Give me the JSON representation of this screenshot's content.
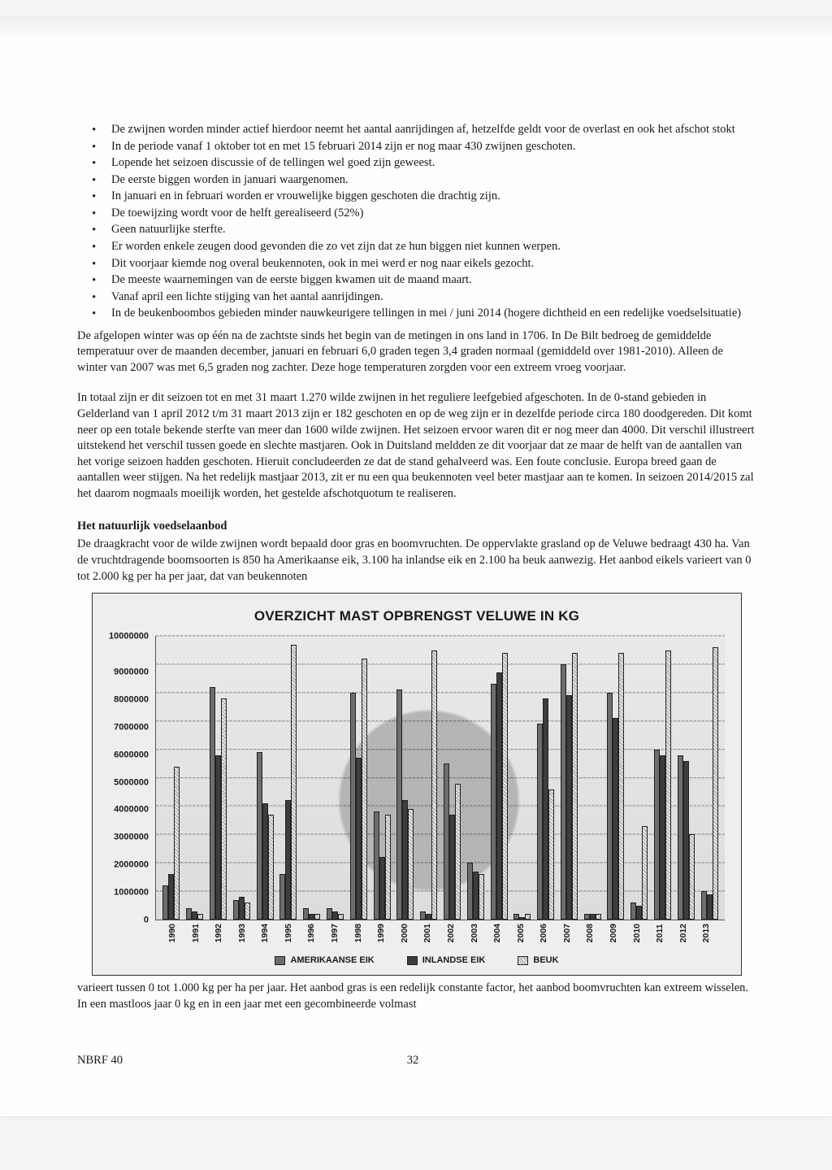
{
  "bullets": [
    "De zwijnen worden minder actief hierdoor neemt het aantal aanrijdingen af, hetzelfde geldt voor de overlast en ook het afschot stokt",
    "In de periode vanaf 1 oktober tot en met 15 februari 2014 zijn er nog maar 430 zwijnen geschoten.",
    "Lopende het seizoen discussie of de tellingen wel goed zijn geweest.",
    "De eerste biggen worden in januari waargenomen.",
    "In januari en in februari worden er vrouwelijke biggen geschoten die drachtig zijn.",
    "De toewijzing wordt voor de helft gerealiseerd (52%)",
    "Geen natuurlijke sterfte.",
    "Er worden enkele zeugen dood gevonden die zo vet zijn dat ze hun biggen niet kunnen werpen.",
    "Dit voorjaar kiemde nog overal beukennoten, ook in mei werd er nog naar eikels gezocht.",
    "De meeste waarnemingen van de eerste biggen kwamen uit de maand maart.",
    "Vanaf april een lichte stijging van het aantal aanrijdingen.",
    "In de beukenboombos gebieden minder nauwkeurigere tellingen in mei / juni 2014 (hogere dichtheid en een redelijke voedselsituatie)"
  ],
  "para1": "De afgelopen winter was op één na de zachtste sinds het begin van de metingen in ons land in 1706. In De Bilt bedroeg de gemiddelde temperatuur over de maanden december, januari en februari 6,0 graden tegen 3,4 graden normaal (gemiddeld over 1981-2010). Alleen de winter van 2007 was met 6,5 graden nog zachter. Deze hoge temperaturen zorgden voor een extreem vroeg voorjaar.",
  "para2": "In totaal zijn er dit seizoen tot en met 31 maart 1.270 wilde zwijnen in het reguliere leefgebied afgeschoten. In de 0-stand gebieden in Gelderland van 1 april 2012 t/m 31 maart 2013 zijn er 182 geschoten en op de weg zijn er in dezelfde periode circa 180 doodgereden. Dit komt neer op een totale bekende sterfte van meer dan 1600 wilde zwijnen. Het seizoen ervoor waren dit er nog meer dan 4000. Dit verschil illustreert uitstekend het verschil tussen goede en slechte mastjaren. Ook in Duitsland meldden ze dit voorjaar dat ze maar de helft van de aantallen van het vorige seizoen hadden geschoten. Hieruit concludeerden ze dat de stand gehalveerd was. Een foute conclusie. Europa breed gaan de aantallen weer stijgen. Na het redelijk mastjaar 2013, zit er nu een qua beukennoten veel beter mastjaar aan te komen. In seizoen 2014/2015 zal het daarom nogmaals moeilijk worden, het gestelde afschotquotum te realiseren.",
  "section_heading": "Het natuurlijk voedselaanbod",
  "para3": "De draagkracht voor de wilde zwijnen wordt bepaald door gras en boomvruchten. De oppervlakte grasland op de Veluwe bedraagt 430 ha. Van de vruchtdragende boomsoorten is 850 ha Amerikaanse eik, 3.100 ha inlandse eik en 2.100 ha beuk aanwezig. Het aanbod eikels varieert van 0 tot 2.000 kg per ha per jaar, dat van beukennoten",
  "chart": {
    "title": "OVERZICHT MAST OPBRENGST VELUWE IN KG",
    "ymax": 10000000,
    "ytick_step": 1000000,
    "yticks": [
      "10000000",
      "9000000",
      "8000000",
      "7000000",
      "6000000",
      "5000000",
      "4000000",
      "3000000",
      "2000000",
      "1000000",
      "0"
    ],
    "years": [
      "1990",
      "1991",
      "1992",
      "1993",
      "1994",
      "1995",
      "1996",
      "1997",
      "1998",
      "1999",
      "2000",
      "2001",
      "2002",
      "2003",
      "2004",
      "2005",
      "2006",
      "2007",
      "2008",
      "2009",
      "2010",
      "2011",
      "2012",
      "2013"
    ],
    "series": [
      {
        "name": "AMERIKAANSE EIK",
        "color": "#6d6d6d",
        "pattern": "solid"
      },
      {
        "name": "INLANDSE EIK",
        "color": "#3d3d3d",
        "pattern": "solid"
      },
      {
        "name": "BEUK",
        "color": "#b5b5b5",
        "pattern": "solid"
      }
    ],
    "data": {
      "AMERIKAANSE_EIK": [
        1200000,
        400000,
        8200000,
        700000,
        5900000,
        1600000,
        400000,
        400000,
        8000000,
        3800000,
        8100000,
        300000,
        5500000,
        2000000,
        8300000,
        200000,
        6900000,
        9000000,
        200000,
        8000000,
        600000,
        6000000,
        5800000,
        1000000
      ],
      "INLANDSE_EIK": [
        1600000,
        300000,
        5800000,
        800000,
        4100000,
        4200000,
        200000,
        300000,
        5700000,
        2200000,
        4200000,
        200000,
        3700000,
        1700000,
        8700000,
        100000,
        7800000,
        7900000,
        200000,
        7100000,
        500000,
        5800000,
        5600000,
        900000
      ],
      "BEUK": [
        5400000,
        200000,
        7800000,
        600000,
        3700000,
        9700000,
        200000,
        200000,
        9200000,
        3700000,
        3900000,
        9500000,
        4800000,
        1600000,
        9400000,
        200000,
        4600000,
        9400000,
        200000,
        9400000,
        3300000,
        9500000,
        3000000,
        9600000
      ]
    },
    "legend_labels": [
      "AMERIKAANSE EIK",
      "INLANDSE EIK",
      "BEUK"
    ],
    "background_color": "#eeeeee",
    "grid_color": "#999999",
    "border_color": "#333333",
    "label_fontsize": 11
  },
  "para4": "varieert tussen 0 tot 1.000 kg per ha per jaar. Het aanbod gras is een redelijk constante factor, het aanbod boomvruchten kan extreem wisselen. In een mastloos jaar 0 kg en in een jaar met een gecombineerde volmast",
  "footer": {
    "doc": "NBRF 40",
    "page": "32"
  }
}
